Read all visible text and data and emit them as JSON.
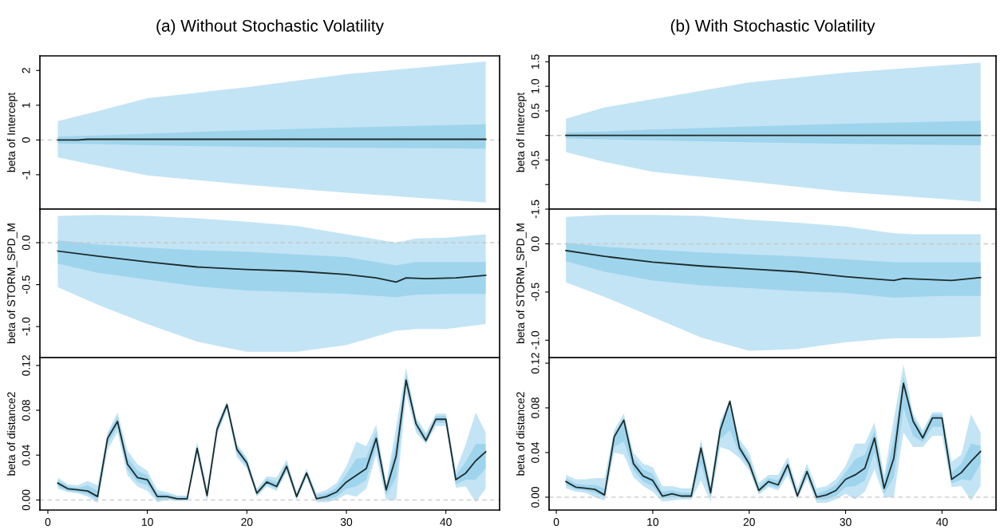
{
  "chart_data": [
    {
      "type": "line",
      "title": "(a) Without Stochastic Volatility",
      "ylabel": "beta of Intercept",
      "xlim": [
        -0.8,
        45.4
      ],
      "ylim": [
        -1.99,
        2.42
      ],
      "yticks": [
        -1,
        0,
        1,
        2
      ],
      "tick_labels": "y",
      "ref_lines": [
        {
          "axis": "y",
          "value": 0,
          "color": "#c8c8c8",
          "line_style": "dashed"
        }
      ],
      "series": [
        {
          "color": "#c3e4f4",
          "x": [
            1,
            5,
            10,
            20,
            30,
            44
          ],
          "values": [
            null,
            null,
            null,
            null,
            null,
            null
          ],
          "lower": [
            -0.5,
            -0.74,
            -1.02,
            -1.29,
            -1.52,
            -1.8
          ],
          "upper": [
            0.54,
            0.83,
            1.2,
            1.52,
            1.89,
            2.26
          ]
        },
        {
          "color": "#9fd4ed",
          "x": [
            1,
            5,
            10,
            20,
            30,
            44
          ],
          "values": [
            null,
            null,
            null,
            null,
            null,
            null
          ],
          "lower": [
            -0.1,
            -0.12,
            -0.15,
            -0.2,
            -0.22,
            -0.25
          ],
          "upper": [
            0.1,
            0.13,
            0.18,
            0.28,
            0.36,
            0.45
          ]
        },
        {
          "type": "line",
          "color": "#1c2b2b",
          "x": [
            1,
            3,
            4,
            44
          ],
          "values": [
            0,
            0,
            0.02,
            0.02
          ]
        }
      ]
    },
    {
      "type": "line",
      "title": "(b) With Stochastic Volatility",
      "ylabel": "beta of Intercept",
      "xlim": [
        -0.75,
        45.6
      ],
      "ylim": [
        -1.5,
        1.62
      ],
      "yticks": [
        {
          "value": -1.5,
          "label": "-1.5"
        },
        {
          "value": -1,
          "label": null
        },
        -0.5,
        {
          "value": 0,
          "label": null
        },
        0.5,
        {
          "value": 1,
          "label": "1.0"
        },
        1.5
      ],
      "tick_labels": "y",
      "ref_lines": [
        {
          "axis": "y",
          "value": 0,
          "color": "#c8c8c8",
          "line_style": "dashed"
        }
      ],
      "series": [
        {
          "color": "#c3e4f4",
          "x": [
            1,
            5,
            10,
            20,
            30,
            44
          ],
          "values": [
            null,
            null,
            null,
            null,
            null,
            null
          ],
          "lower": [
            -0.34,
            -0.54,
            -0.74,
            -0.94,
            -1.15,
            -1.35
          ],
          "upper": [
            0.34,
            0.57,
            0.74,
            1.08,
            1.28,
            1.48
          ]
        },
        {
          "color": "#9fd4ed",
          "x": [
            1,
            5,
            10,
            20,
            30,
            44
          ],
          "values": [
            null,
            null,
            null,
            null,
            null,
            null
          ],
          "lower": [
            -0.06,
            -0.08,
            -0.1,
            -0.14,
            -0.17,
            -0.2
          ],
          "upper": [
            0.06,
            0.08,
            0.12,
            0.18,
            0.24,
            0.3
          ]
        },
        {
          "type": "line",
          "color": "#1c2b2b",
          "x": [
            1,
            44
          ],
          "values": [
            0,
            0
          ]
        }
      ]
    },
    {
      "type": "line",
      "ylabel": "beta of STORM_SPD_M",
      "xlim": [
        -0.8,
        45.4
      ],
      "ylim": [
        -1.37,
        0.4
      ],
      "yticks": [
        {
          "value": -1,
          "label": "-1.0"
        },
        -0.5,
        {
          "value": 0,
          "label": "0.0"
        }
      ],
      "tick_labels": "y",
      "ref_lines": [
        {
          "axis": "y",
          "value": 0,
          "color": "#c8c8c8",
          "line_style": "dashed"
        }
      ],
      "series": [
        {
          "color": "#c3e4f4",
          "x": [
            1,
            5,
            10,
            15,
            20,
            25,
            30,
            35,
            37,
            40,
            44
          ],
          "values": [
            null,
            null,
            null,
            null,
            null,
            null,
            null,
            null,
            null,
            null,
            null
          ],
          "lower": [
            -0.53,
            -0.74,
            -0.97,
            -1.18,
            -1.3,
            -1.3,
            -1.22,
            -1.05,
            -1.03,
            -1.03,
            -0.97
          ],
          "upper": [
            0.32,
            0.33,
            0.32,
            0.29,
            0.25,
            0.2,
            0.1,
            0.0,
            0.05,
            0.06,
            0.1
          ]
        },
        {
          "color": "#9fd4ed",
          "x": [
            1,
            5,
            10,
            15,
            20,
            25,
            30,
            35,
            37,
            40,
            44
          ],
          "values": [
            null,
            null,
            null,
            null,
            null,
            null,
            null,
            null,
            null,
            null,
            null
          ],
          "lower": [
            -0.25,
            -0.36,
            -0.44,
            -0.52,
            -0.57,
            -0.59,
            -0.61,
            -0.65,
            -0.62,
            -0.61,
            -0.61
          ],
          "upper": [
            0.03,
            -0.02,
            -0.06,
            -0.09,
            -0.11,
            -0.14,
            -0.17,
            -0.27,
            -0.23,
            -0.23,
            -0.23
          ]
        },
        {
          "type": "line",
          "color": "#1c2b2b",
          "x": [
            1,
            5,
            10,
            15,
            20,
            25,
            30,
            33,
            35,
            36,
            38,
            41,
            44
          ],
          "values": [
            -0.1,
            -0.16,
            -0.23,
            -0.29,
            -0.32,
            -0.34,
            -0.38,
            -0.42,
            -0.47,
            -0.42,
            -0.43,
            -0.42,
            -0.39
          ]
        }
      ]
    },
    {
      "type": "line",
      "ylabel": "beta of STORM_SPD_M",
      "xlim": [
        -0.75,
        45.6
      ],
      "ylim": [
        -1.18,
        0.36
      ],
      "yticks": [
        {
          "value": -1,
          "label": "-1.0"
        },
        -0.5,
        {
          "value": 0,
          "label": "0.0"
        }
      ],
      "tick_labels": "y",
      "ref_lines": [
        {
          "axis": "y",
          "value": 0,
          "color": "#c8c8c8",
          "line_style": "dashed"
        }
      ],
      "series": [
        {
          "color": "#c3e4f4",
          "x": [
            1,
            5,
            10,
            15,
            20,
            25,
            30,
            35,
            37,
            40,
            44
          ],
          "values": [
            null,
            null,
            null,
            null,
            null,
            null,
            null,
            null,
            null,
            null,
            null
          ],
          "lower": [
            -0.4,
            -0.55,
            -0.76,
            -0.97,
            -1.11,
            -1.09,
            -1.02,
            -0.98,
            -0.98,
            -0.98,
            -0.96
          ],
          "upper": [
            0.28,
            0.3,
            0.3,
            0.29,
            0.25,
            0.22,
            0.18,
            0.11,
            0.1,
            0.1,
            0.1
          ]
        },
        {
          "color": "#9fd4ed",
          "x": [
            1,
            5,
            10,
            15,
            20,
            25,
            30,
            35,
            37,
            40,
            44
          ],
          "values": [
            null,
            null,
            null,
            null,
            null,
            null,
            null,
            null,
            null,
            null,
            null
          ],
          "lower": [
            -0.18,
            -0.29,
            -0.38,
            -0.43,
            -0.46,
            -0.49,
            -0.51,
            -0.56,
            -0.55,
            -0.54,
            -0.54
          ],
          "upper": [
            0.01,
            -0.03,
            -0.06,
            -0.09,
            -0.11,
            -0.13,
            -0.16,
            -0.19,
            -0.19,
            -0.19,
            -0.19
          ]
        },
        {
          "type": "line",
          "color": "#1c2b2b",
          "x": [
            1,
            5,
            10,
            15,
            20,
            25,
            30,
            35,
            36,
            41,
            44
          ],
          "values": [
            -0.07,
            -0.13,
            -0.19,
            -0.23,
            -0.26,
            -0.29,
            -0.34,
            -0.38,
            -0.36,
            -0.38,
            -0.35
          ]
        }
      ]
    },
    {
      "type": "line",
      "ylabel": "beta of distance2",
      "xlim": [
        -0.8,
        45.4
      ],
      "ylim": [
        -0.009,
        0.127
      ],
      "xticks": [
        0,
        10,
        20,
        30,
        40
      ],
      "yticks": [
        {
          "value": 0,
          "label": "0.00"
        },
        0.04,
        0.08,
        0.12
      ],
      "ref_lines": [
        {
          "axis": "y",
          "value": 0,
          "color": "#c8c8c8",
          "line_style": "dashed"
        }
      ],
      "x": [
        1,
        2,
        3,
        4,
        5,
        6,
        7,
        8,
        9,
        10,
        11,
        12,
        13,
        14,
        15,
        16,
        17,
        18,
        19,
        20,
        21,
        22,
        23,
        24,
        25,
        26,
        27,
        28,
        29,
        30,
        31,
        32,
        33,
        34,
        35,
        36,
        37,
        38,
        39,
        40,
        41,
        42,
        43,
        44
      ],
      "series": [
        {
          "color": "#c3e4f4",
          "values": [
            null,
            null,
            null,
            null,
            null,
            null,
            null,
            null,
            null,
            null,
            null,
            null,
            null,
            null,
            null,
            null,
            null,
            null,
            null,
            null,
            null,
            null,
            null,
            null,
            null,
            null,
            null,
            null,
            null,
            null,
            null,
            null,
            null,
            null,
            null,
            null,
            null,
            null,
            null,
            null,
            null,
            null,
            null,
            null
          ],
          "lower": [
            0.01,
            0.007,
            0.006,
            0.003,
            -0.003,
            0.045,
            0.06,
            0.022,
            0.012,
            0.008,
            -0.002,
            0.0,
            -0.001,
            -0.001,
            0.04,
            -0.001,
            0.058,
            0.08,
            0.038,
            0.028,
            0.003,
            0.012,
            0.008,
            0.025,
            0.0,
            0.02,
            -0.002,
            -0.002,
            0.0,
            0.005,
            0.003,
            0.01,
            0.04,
            0.0,
            0.0,
            0.095,
            0.06,
            0.05,
            0.066,
            0.066,
            0.011,
            0.012,
            -0.002,
            0.01
          ],
          "upper": [
            0.02,
            0.014,
            0.013,
            0.017,
            0.013,
            0.06,
            0.078,
            0.044,
            0.032,
            0.026,
            0.009,
            0.007,
            0.004,
            0.004,
            0.052,
            0.01,
            0.068,
            0.088,
            0.05,
            0.038,
            0.01,
            0.021,
            0.02,
            0.036,
            0.007,
            0.028,
            0.006,
            0.009,
            0.015,
            0.03,
            0.052,
            0.048,
            0.067,
            0.015,
            0.065,
            0.118,
            0.074,
            0.06,
            0.077,
            0.077,
            0.026,
            0.05,
            0.078,
            0.06
          ]
        },
        {
          "color": "#9fd4ed",
          "values": [
            null,
            null,
            null,
            null,
            null,
            null,
            null,
            null,
            null,
            null,
            null,
            null,
            null,
            null,
            null,
            null,
            null,
            null,
            null,
            null,
            null,
            null,
            null,
            null,
            null,
            null,
            null,
            null,
            null,
            null,
            null,
            null,
            null,
            null,
            null,
            null,
            null,
            null,
            null,
            null,
            null,
            null,
            null,
            null
          ],
          "lower": [
            0.012,
            0.008,
            0.007,
            0.005,
            0.0,
            0.05,
            0.065,
            0.027,
            0.016,
            0.013,
            0.0,
            0.001,
            0.0,
            0.0,
            0.043,
            0.001,
            0.06,
            0.082,
            0.041,
            0.03,
            0.004,
            0.014,
            0.01,
            0.027,
            0.001,
            0.022,
            0.0,
            0.0,
            0.003,
            0.01,
            0.012,
            0.018,
            0.047,
            0.004,
            0.02,
            0.101,
            0.064,
            0.051,
            0.069,
            0.069,
            0.014,
            0.018,
            0.018,
            0.028
          ],
          "upper": [
            0.018,
            0.012,
            0.011,
            0.013,
            0.008,
            0.058,
            0.074,
            0.038,
            0.026,
            0.022,
            0.006,
            0.005,
            0.003,
            0.003,
            0.049,
            0.007,
            0.066,
            0.087,
            0.048,
            0.036,
            0.008,
            0.019,
            0.016,
            0.033,
            0.005,
            0.026,
            0.004,
            0.006,
            0.011,
            0.023,
            0.037,
            0.038,
            0.061,
            0.012,
            0.052,
            0.112,
            0.071,
            0.057,
            0.075,
            0.075,
            0.022,
            0.034,
            0.05,
            0.05
          ]
        },
        {
          "type": "line",
          "color": "#1c2b2b",
          "values": [
            0.015,
            0.01,
            0.009,
            0.008,
            0.003,
            0.055,
            0.07,
            0.032,
            0.02,
            0.018,
            0.003,
            0.003,
            0.001,
            0.001,
            0.046,
            0.004,
            0.063,
            0.085,
            0.045,
            0.033,
            0.006,
            0.016,
            0.012,
            0.03,
            0.003,
            0.024,
            0.001,
            0.003,
            0.007,
            0.016,
            0.022,
            0.028,
            0.055,
            0.009,
            0.039,
            0.107,
            0.068,
            0.053,
            0.072,
            0.072,
            0.018,
            0.024,
            0.035,
            0.043
          ]
        }
      ]
    },
    {
      "type": "line",
      "ylabel": "beta of distance2",
      "xlim": [
        -0.75,
        45.6
      ],
      "ylim": [
        -0.0115,
        0.125
      ],
      "xticks": [
        0,
        10,
        20,
        30,
        40
      ],
      "yticks": [
        {
          "value": 0,
          "label": "0.00"
        },
        0.04,
        0.08,
        0.12
      ],
      "ref_lines": [
        {
          "axis": "y",
          "value": 0,
          "color": "#c8c8c8",
          "line_style": "dashed"
        }
      ],
      "x": [
        1,
        2,
        3,
        4,
        5,
        6,
        7,
        8,
        9,
        10,
        11,
        12,
        13,
        14,
        15,
        16,
        17,
        18,
        19,
        20,
        21,
        22,
        23,
        24,
        25,
        26,
        27,
        28,
        29,
        30,
        31,
        32,
        33,
        34,
        35,
        36,
        37,
        38,
        39,
        40,
        41,
        42,
        43,
        44
      ],
      "series": [
        {
          "color": "#c3e4f4",
          "values": [
            null,
            null,
            null,
            null,
            null,
            null,
            null,
            null,
            null,
            null,
            null,
            null,
            null,
            null,
            null,
            null,
            null,
            null,
            null,
            null,
            null,
            null,
            null,
            null,
            null,
            null,
            null,
            null,
            null,
            null,
            null,
            null,
            null,
            null,
            null,
            null,
            null,
            null,
            null,
            null,
            null,
            null,
            null,
            null
          ],
          "lower": [
            0.008,
            0.005,
            0.004,
            0.0,
            -0.003,
            0.04,
            0.038,
            0.018,
            0.01,
            0.005,
            -0.004,
            -0.003,
            -0.002,
            -0.002,
            0.015,
            -0.004,
            0.045,
            0.042,
            0.035,
            0.024,
            0.002,
            0.009,
            0.006,
            0.02,
            -0.002,
            0.016,
            -0.005,
            -0.005,
            -0.002,
            0.003,
            -0.002,
            0.005,
            0.025,
            0.0,
            0.0,
            0.058,
            0.045,
            0.045,
            0.055,
            0.055,
            0.009,
            0.01,
            -0.003,
            0.01
          ],
          "upper": [
            0.02,
            0.016,
            0.016,
            0.017,
            0.017,
            0.06,
            0.075,
            0.04,
            0.03,
            0.027,
            0.01,
            0.01,
            0.008,
            0.008,
            0.052,
            0.012,
            0.068,
            0.087,
            0.052,
            0.04,
            0.013,
            0.02,
            0.02,
            0.036,
            0.008,
            0.03,
            0.008,
            0.01,
            0.016,
            0.028,
            0.048,
            0.048,
            0.067,
            0.02,
            0.07,
            0.119,
            0.075,
            0.06,
            0.076,
            0.076,
            0.032,
            0.038,
            0.074,
            0.058
          ]
        },
        {
          "color": "#9fd4ed",
          "values": [
            null,
            null,
            null,
            null,
            null,
            null,
            null,
            null,
            null,
            null,
            null,
            null,
            null,
            null,
            null,
            null,
            null,
            null,
            null,
            null,
            null,
            null,
            null,
            null,
            null,
            null,
            null,
            null,
            null,
            null,
            null,
            null,
            null,
            null,
            null,
            null,
            null,
            null,
            null,
            null,
            null,
            null,
            null,
            null
          ],
          "lower": [
            0.011,
            0.007,
            0.006,
            0.004,
            0.0,
            0.045,
            0.05,
            0.024,
            0.014,
            0.01,
            -0.001,
            0.0,
            0.0,
            0.0,
            0.03,
            0.0,
            0.052,
            0.06,
            0.039,
            0.027,
            0.004,
            0.011,
            0.008,
            0.024,
            0.0,
            0.019,
            -0.002,
            -0.002,
            0.001,
            0.009,
            0.01,
            0.015,
            0.04,
            0.003,
            0.018,
            0.08,
            0.055,
            0.049,
            0.063,
            0.063,
            0.012,
            0.016,
            0.015,
            0.03
          ],
          "upper": [
            0.017,
            0.012,
            0.011,
            0.011,
            0.008,
            0.057,
            0.071,
            0.035,
            0.025,
            0.021,
            0.005,
            0.006,
            0.004,
            0.004,
            0.048,
            0.008,
            0.064,
            0.086,
            0.048,
            0.035,
            0.009,
            0.017,
            0.015,
            0.032,
            0.004,
            0.026,
            0.003,
            0.006,
            0.011,
            0.022,
            0.034,
            0.038,
            0.06,
            0.014,
            0.052,
            0.108,
            0.072,
            0.057,
            0.074,
            0.074,
            0.022,
            0.03,
            0.048,
            0.046
          ]
        },
        {
          "type": "line",
          "color": "#1c2b2b",
          "values": [
            0.014,
            0.009,
            0.008,
            0.007,
            0.002,
            0.054,
            0.069,
            0.03,
            0.019,
            0.015,
            0.001,
            0.003,
            0.001,
            0.001,
            0.044,
            0.004,
            0.06,
            0.086,
            0.044,
            0.03,
            0.006,
            0.014,
            0.011,
            0.029,
            0.001,
            0.023,
            0.0,
            0.002,
            0.006,
            0.016,
            0.02,
            0.026,
            0.053,
            0.008,
            0.035,
            0.102,
            0.068,
            0.053,
            0.071,
            0.071,
            0.016,
            0.022,
            0.032,
            0.041
          ]
        }
      ]
    }
  ]
}
